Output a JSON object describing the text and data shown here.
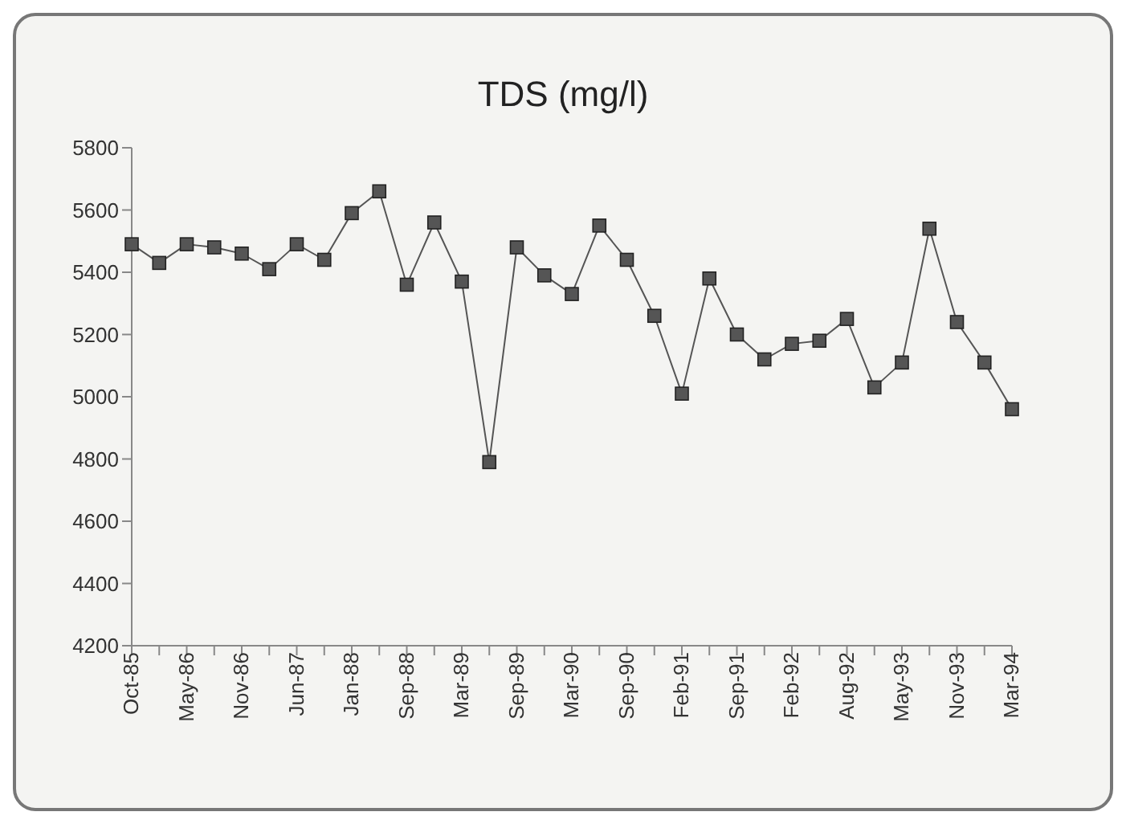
{
  "chart_data": {
    "type": "line",
    "title": "TDS (mg/l)",
    "categories": [
      "Oct-85",
      null,
      "May-86",
      null,
      "Nov-86",
      null,
      "Jun-87",
      null,
      "Jan-88",
      null,
      "Sep-88",
      null,
      "Mar-89",
      null,
      "Sep-89",
      null,
      "Mar-90",
      null,
      "Sep-90",
      null,
      "Feb-91",
      null,
      "Sep-91",
      null,
      "Feb-92",
      null,
      "Aug-92",
      null,
      "May-93",
      null,
      "Nov-93",
      null,
      "Mar-94"
    ],
    "series": [
      {
        "color": "#555555",
        "values": [
          5490,
          5430,
          5490,
          5480,
          5460,
          5410,
          5490,
          5440,
          5590,
          5660,
          5360,
          5560,
          5370,
          4790,
          5480,
          5390,
          5330,
          5550,
          5440,
          5260,
          5010,
          5380,
          5200,
          5120,
          5170,
          5180,
          5250,
          5030,
          5110,
          5540,
          5240,
          5110,
          4960
        ]
      }
    ],
    "ylim": [
      4200,
      5800
    ],
    "yticks": [
      4200,
      4400,
      4600,
      4800,
      5000,
      5200,
      5400,
      5600,
      5800
    ],
    "grid": false,
    "legend": false,
    "marker": "square",
    "line_style": "solid"
  }
}
